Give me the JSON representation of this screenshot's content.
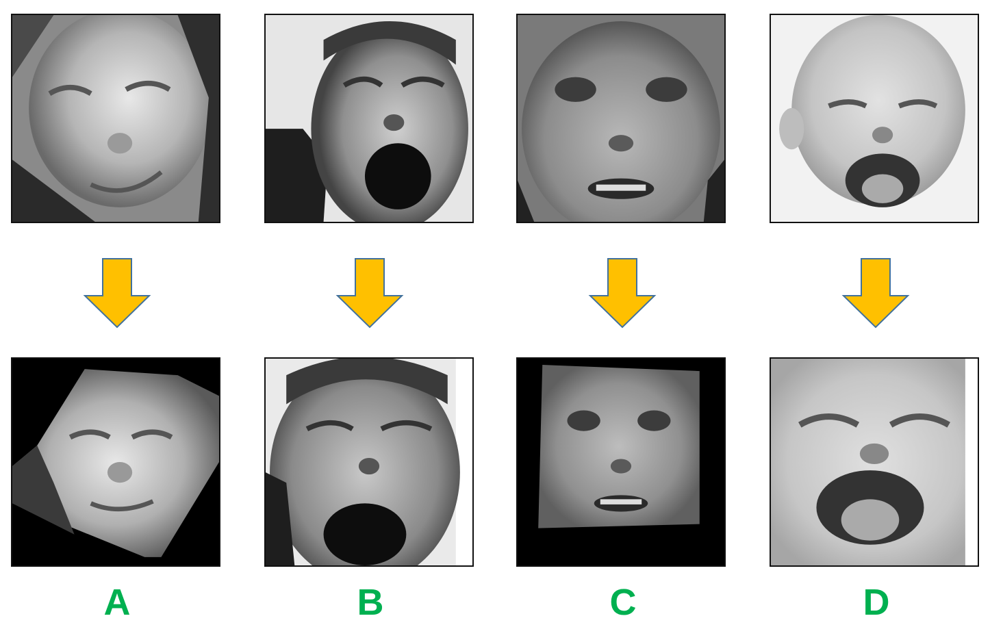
{
  "colors": {
    "arrow_fill": "#FFC000",
    "arrow_stroke": "#41719C",
    "label": "#00B050",
    "frame": "#111111",
    "mask": "#000000"
  },
  "panels": [
    {
      "label": "A",
      "original": "face-photo-grimace-woman",
      "aligned": "face-photo-grimace-woman-aligned"
    },
    {
      "label": "B",
      "original": "face-photo-screaming-man",
      "aligned": "face-photo-screaming-man-aligned"
    },
    {
      "label": "C",
      "original": "face-photo-crying-woman",
      "aligned": "face-photo-crying-woman-aligned"
    },
    {
      "label": "D",
      "original": "face-photo-laughing-baby",
      "aligned": "face-photo-laughing-baby-aligned"
    }
  ],
  "arrow_icon": "down-arrow-icon"
}
